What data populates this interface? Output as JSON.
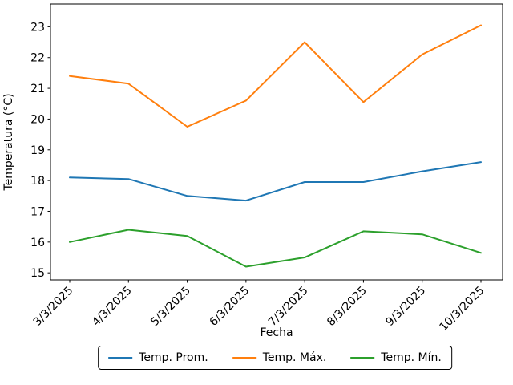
{
  "chart_data": {
    "type": "line",
    "title": "",
    "xlabel": "Fecha",
    "ylabel": "Temperatura (°C)",
    "categories": [
      "3/3/2025",
      "4/3/2025",
      "5/3/2025",
      "6/3/2025",
      "7/3/2025",
      "8/3/2025",
      "9/3/2025",
      "10/3/2025"
    ],
    "series": [
      {
        "name": "Temp. Prom.",
        "color": "#1f77b4",
        "values": [
          18.1,
          18.05,
          17.5,
          17.35,
          17.95,
          17.95,
          18.3,
          18.6
        ]
      },
      {
        "name": "Temp. Máx.",
        "color": "#ff7f0e",
        "values": [
          21.4,
          21.15,
          19.75,
          20.6,
          22.5,
          20.55,
          22.1,
          23.05
        ]
      },
      {
        "name": "Temp. Mín.",
        "color": "#2ca02c",
        "values": [
          16.0,
          16.4,
          16.2,
          15.2,
          15.5,
          16.35,
          16.25,
          15.65
        ]
      }
    ],
    "yticks": [
      15,
      16,
      17,
      18,
      19,
      20,
      21,
      22,
      23
    ],
    "ylim": [
      14.77,
      23.74
    ],
    "x_tick_rotation_deg": 45,
    "grid": false,
    "legend_position": "bottom-center",
    "frame_color": "#000000",
    "background": "#ffffff"
  }
}
